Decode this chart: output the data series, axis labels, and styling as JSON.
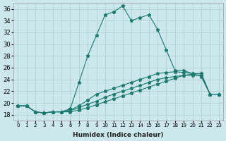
{
  "xlabel": "Humidex (Indice chaleur)",
  "ylabel": "",
  "background_color": "#cde8ec",
  "grid_color": "#aacccc",
  "line_color": "#1a7a6e",
  "xlim": [
    -0.5,
    23.5
  ],
  "ylim": [
    17,
    37
  ],
  "yticks": [
    18,
    20,
    22,
    24,
    26,
    28,
    30,
    32,
    34,
    36
  ],
  "xticks": [
    0,
    1,
    2,
    3,
    4,
    5,
    6,
    7,
    8,
    9,
    10,
    11,
    12,
    13,
    14,
    15,
    16,
    17,
    18,
    19,
    20,
    21,
    22,
    23
  ],
  "line1_y": [
    19.5,
    19.5,
    18.5,
    18.3,
    18.5,
    18.5,
    18.5,
    18.8,
    19.2,
    19.7,
    20.2,
    20.7,
    21.2,
    21.7,
    22.2,
    22.7,
    23.2,
    23.7,
    24.2,
    24.7,
    24.9,
    25.0,
    21.5,
    21.5
  ],
  "line2_y": [
    19.5,
    19.5,
    18.5,
    18.3,
    18.5,
    18.5,
    19.0,
    23.5,
    28.0,
    31.5,
    35.0,
    35.5,
    36.5,
    34.0,
    34.5,
    35.0,
    32.5,
    29.0,
    25.5,
    25.5,
    25.0,
    24.5,
    21.5,
    21.5
  ],
  "line3_y": [
    19.5,
    19.5,
    18.5,
    18.3,
    18.5,
    18.5,
    18.8,
    19.5,
    20.5,
    21.5,
    22.0,
    22.5,
    23.0,
    23.5,
    24.0,
    24.5,
    25.0,
    25.2,
    25.3,
    25.2,
    25.0,
    25.0,
    21.5,
    21.5
  ],
  "line4_y": [
    19.5,
    19.5,
    18.5,
    18.3,
    18.5,
    18.5,
    18.7,
    19.2,
    19.8,
    20.3,
    21.0,
    21.5,
    22.0,
    22.5,
    23.0,
    23.5,
    24.0,
    24.3,
    24.5,
    24.7,
    24.7,
    24.7,
    21.5,
    21.5
  ]
}
